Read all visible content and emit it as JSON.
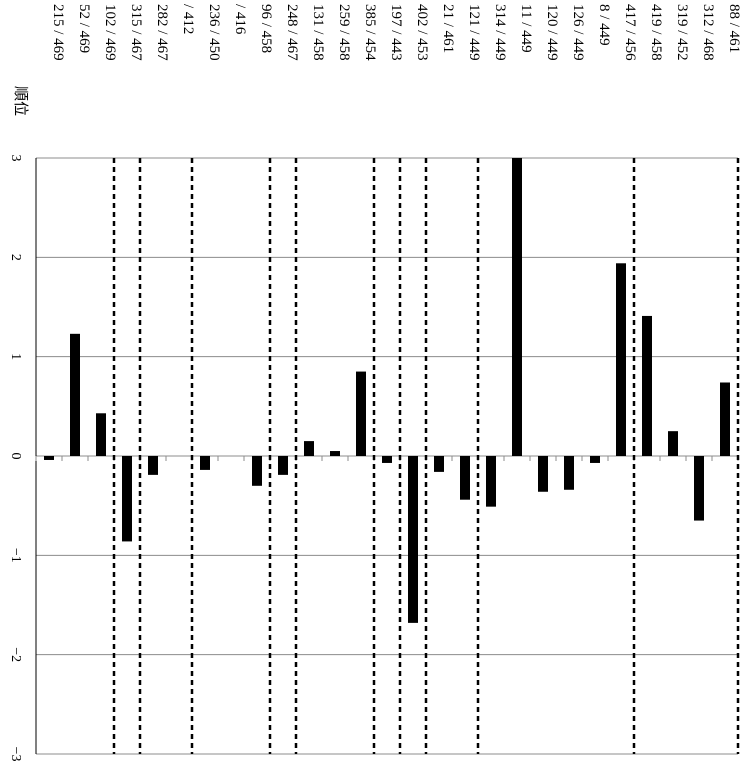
{
  "chart_data": {
    "type": "bar",
    "rank_header": "順位",
    "ylim": [
      -3,
      3
    ],
    "yticks": [
      -3,
      -2,
      -1,
      0,
      1,
      2,
      3
    ],
    "grid": true,
    "categories": [
      "215 / 469",
      "52 / 469",
      "102 / 469",
      "315 / 467",
      "282 / 467",
      "/ 412",
      "236 / 450",
      "/ 416",
      "96 / 458",
      "248 / 467",
      "131 / 458",
      "259 / 458",
      "385 / 454",
      "197 / 443",
      "402 / 453",
      "21 / 461",
      "121 / 449",
      "314 / 449",
      "11 / 449",
      "120 / 449",
      "126 / 449",
      "8 / 449",
      "417 / 456",
      "419 / 458",
      "319 / 452",
      "312 / 468",
      "88 / 461"
    ],
    "values": [
      -0.04,
      1.23,
      0.43,
      -0.86,
      -0.19,
      null,
      -0.14,
      null,
      -0.3,
      -0.19,
      0.15,
      0.05,
      0.85,
      -0.07,
      -1.68,
      -0.16,
      -0.44,
      -0.51,
      3.02,
      -0.36,
      -0.34,
      -0.07,
      1.94,
      1.41,
      0.25,
      -0.65,
      0.74
    ],
    "group_separators_after": [
      2,
      3,
      5,
      8,
      9,
      12,
      13,
      14,
      16,
      22,
      26
    ]
  }
}
